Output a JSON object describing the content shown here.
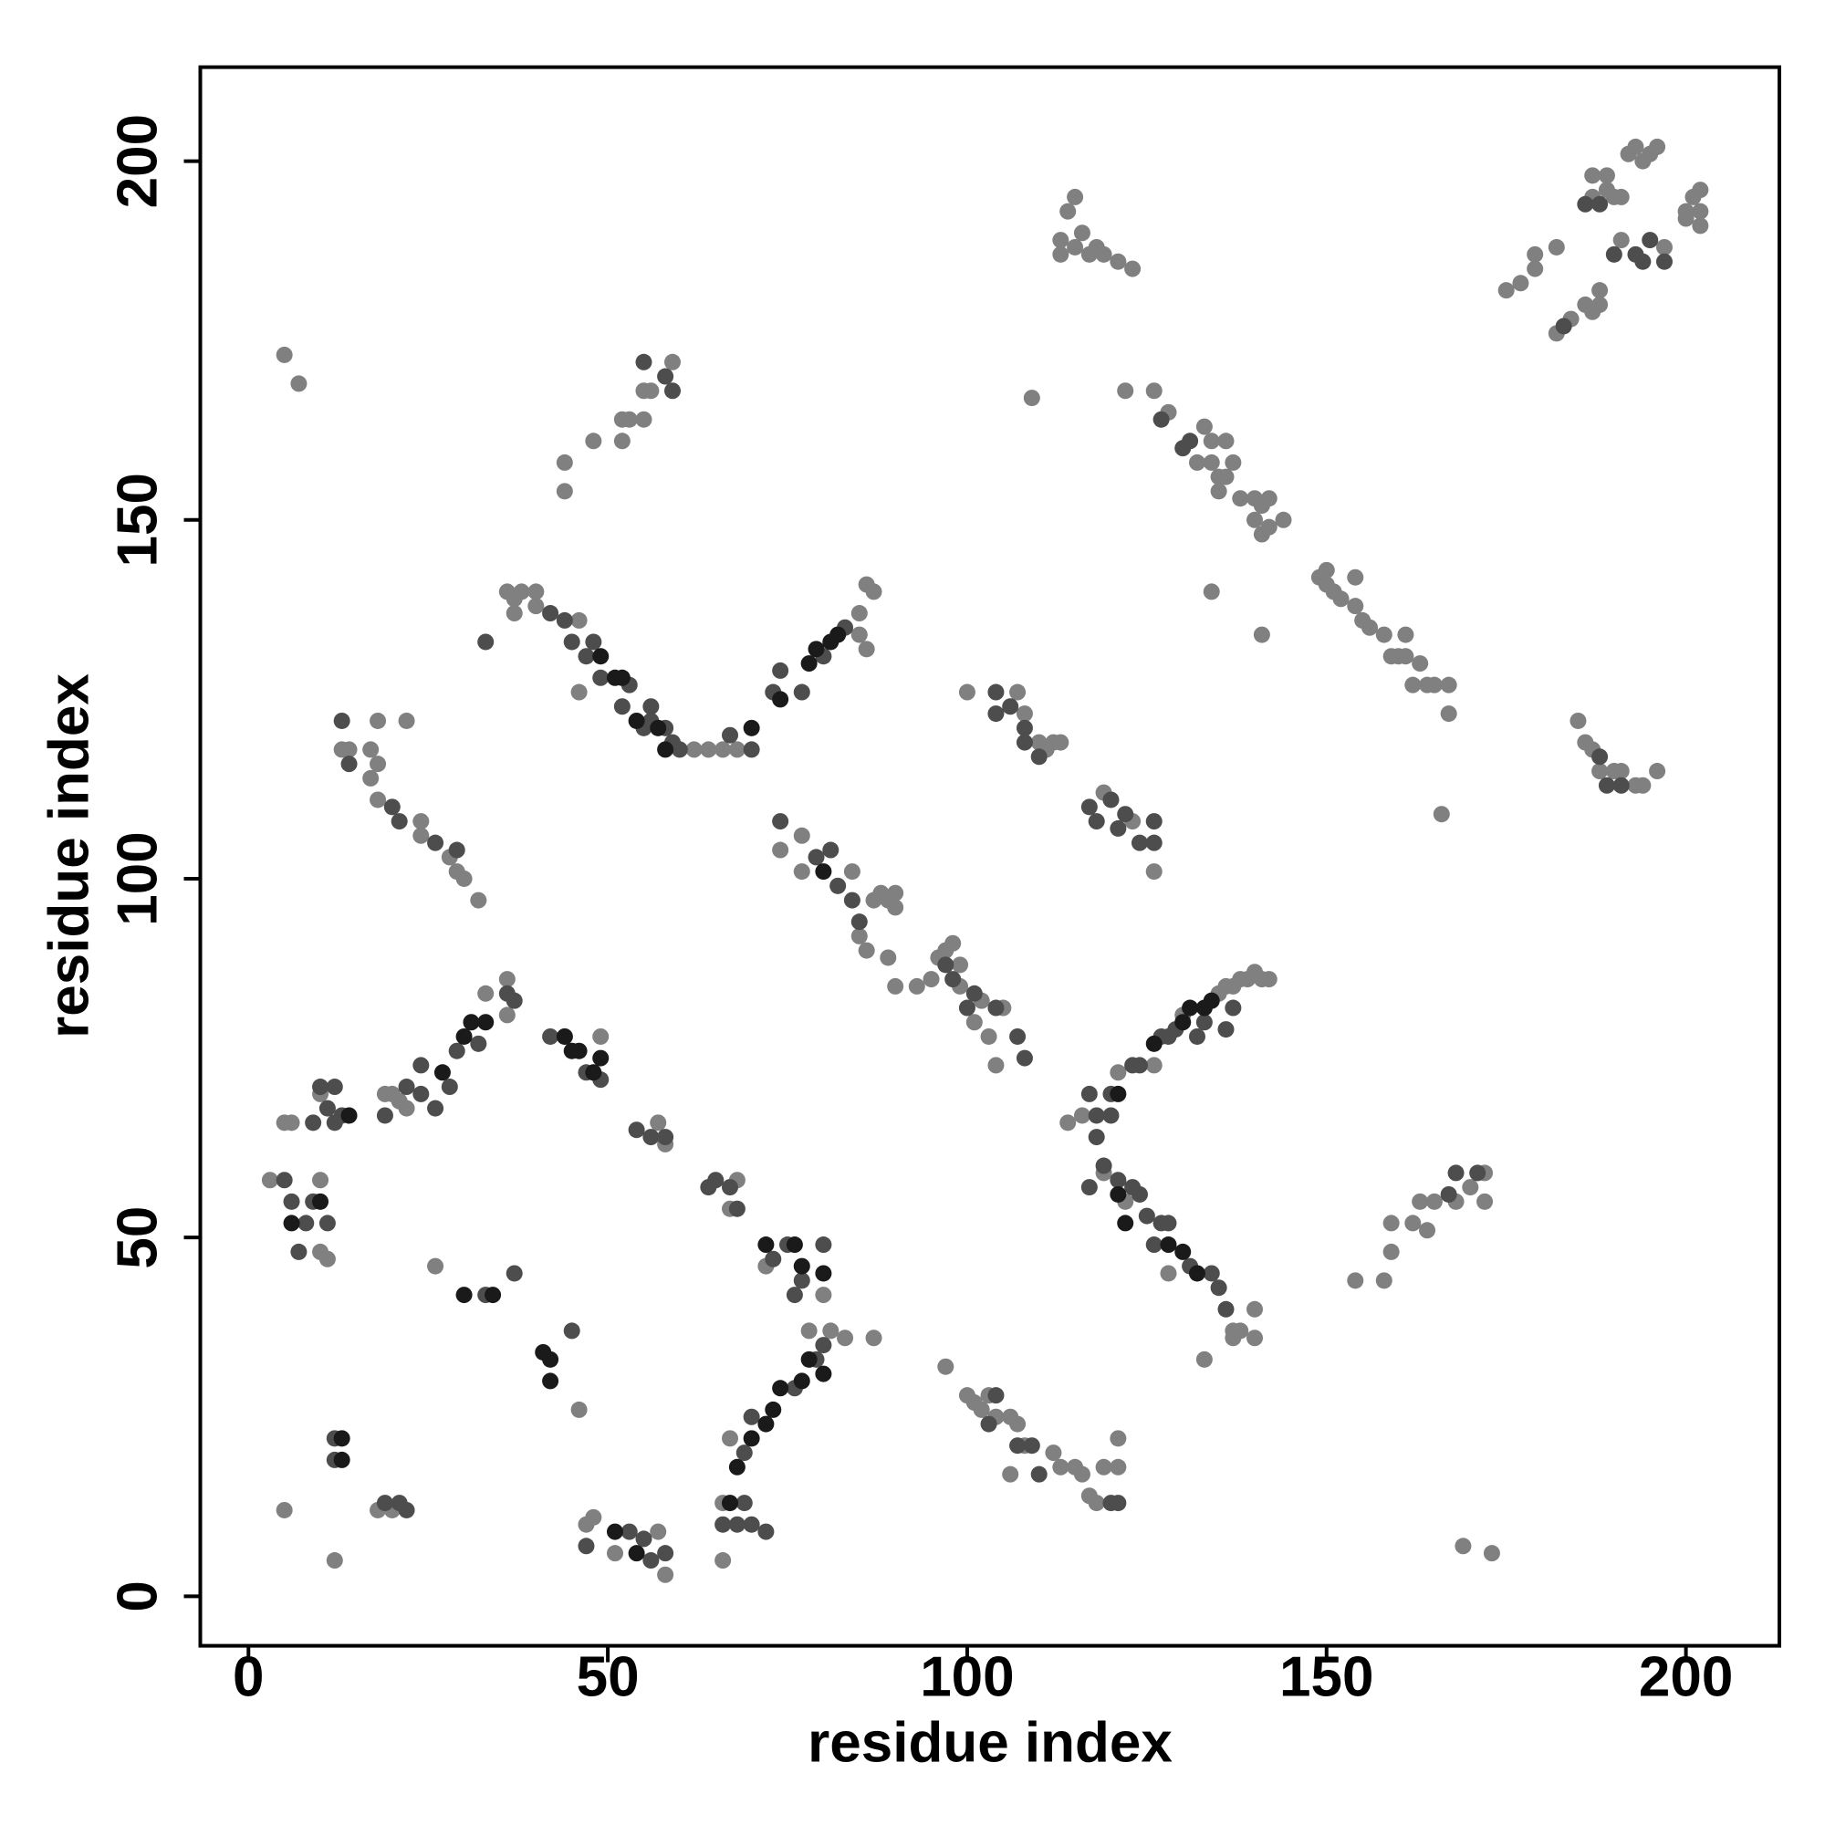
{
  "chart_data": {
    "type": "scatter",
    "x_label": "residue index",
    "y_label": "residue index",
    "xlim": [
      -6.7,
      213
    ],
    "ylim": [
      -6.9,
      213.1
    ],
    "xticks": [
      0,
      50,
      100,
      150,
      200
    ],
    "yticks": [
      0,
      50,
      100,
      150,
      200
    ],
    "grid": false,
    "series": [
      {
        "color": "#808080",
        "x": [
          5,
          12,
          18,
          20,
          26,
          46,
          48,
          47,
          51,
          57,
          58,
          66,
          66,
          67,
          78,
          81,
          83,
          87,
          80,
          72,
          68,
          67,
          57,
          58,
          44,
          49,
          36,
          36,
          33,
          21,
          22,
          20,
          19,
          10,
          6,
          5,
          3,
          10,
          10,
          11,
          5,
          7,
          13,
          14,
          17,
          18,
          17,
          18,
          24,
          24,
          28,
          29,
          30,
          32,
          18,
          22,
          36,
          37,
          37,
          38,
          40,
          40,
          46,
          46,
          62,
          64,
          66,
          68,
          85,
          85,
          86,
          87,
          86,
          44,
          44,
          48,
          52,
          53,
          52,
          55,
          55,
          59,
          56,
          74,
          77,
          77,
          84,
          85,
          86,
          87,
          88,
          89,
          90,
          90,
          89,
          90,
          93,
          95,
          96,
          97,
          98,
          99,
          99,
          101,
          102,
          103,
          105,
          104,
          100,
          107,
          108,
          110,
          111,
          112,
          113,
          119,
          123,
          126,
          109,
          126,
          128,
          132,
          133,
          134,
          134,
          135,
          136,
          135,
          136,
          137,
          138,
          140,
          140,
          141,
          141,
          142,
          142,
          144,
          141,
          134,
          149,
          150,
          150,
          151,
          152,
          154,
          154,
          155,
          156,
          158,
          159,
          160,
          161,
          161,
          162,
          163,
          164,
          165,
          167,
          167,
          122,
          166,
          113,
          114,
          115,
          116,
          117,
          118,
          119,
          121,
          123,
          115,
          113,
          175,
          177,
          179,
          179,
          182,
          182,
          184,
          186,
          187,
          188,
          188,
          187,
          187,
          189,
          189,
          190,
          191,
          191,
          192,
          193,
          194,
          195,
          196,
          197,
          200,
          200,
          201,
          202,
          202,
          202,
          185,
          186,
          187,
          188,
          190,
          191,
          193,
          194,
          196,
          114,
          116,
          122,
          128,
          137,
          137,
          138,
          140,
          140,
          133,
          121,
          126,
          130,
          135,
          136,
          137,
          138,
          139,
          140,
          141,
          142,
          119,
          97,
          100,
          101,
          102,
          103,
          104,
          106,
          107,
          108,
          112,
          115,
          116,
          117,
          118,
          119,
          121,
          121,
          106,
          113,
          154,
          158,
          159,
          159,
          162,
          163,
          164,
          165,
          168,
          170,
          172,
          172,
          169,
          173
        ],
        "values": [
          12,
          5,
          12,
          12,
          46,
          26,
          11,
          10,
          6,
          9,
          3,
          5,
          13,
          22,
          37,
          37,
          36,
          36,
          42,
          46,
          58,
          54,
          66,
          63,
          78,
          78,
          81,
          86,
          84,
          69,
          68,
          70,
          70,
          70,
          66,
          66,
          58,
          58,
          48,
          47,
          173,
          169,
          118,
          118,
          118,
          116,
          114,
          111,
          106,
          108,
          103,
          101,
          100,
          97,
          122,
          122,
          140,
          139,
          137,
          140,
          138,
          140,
          136,
          126,
          118,
          118,
          118,
          118,
          134,
          137,
          141,
          140,
          132,
          154,
          158,
          161,
          164,
          164,
          161,
          164,
          168,
          172,
          168,
          104,
          106,
          101,
          101,
          92,
          90,
          97,
          98,
          97,
          98,
          96,
          89,
          85,
          85,
          86,
          89,
          90,
          91,
          88,
          85,
          80,
          83,
          78,
          82,
          74,
          126,
          126,
          123,
          119,
          118,
          119,
          119,
          112,
          108,
          101,
          167,
          168,
          165,
          158,
          163,
          161,
          158,
          156,
          156,
          154,
          161,
          158,
          153,
          153,
          150,
          148,
          152,
          149,
          153,
          150,
          134,
          140,
          142,
          143,
          141,
          140,
          139,
          142,
          138,
          136,
          135,
          134,
          131,
          131,
          134,
          131,
          127,
          130,
          127,
          127,
          127,
          123,
          168,
          109,
          187,
          193,
          188,
          190,
          187,
          188,
          187,
          186,
          185,
          195,
          189,
          182,
          183,
          185,
          187,
          188,
          176,
          178,
          180,
          179,
          180,
          182,
          195,
          198,
          196,
          198,
          195,
          195,
          189,
          201,
          202,
          200,
          201,
          202,
          188,
          193,
          192,
          195,
          196,
          193,
          191,
          122,
          119,
          118,
          115,
          115,
          115,
          113,
          113,
          115,
          66,
          67,
          55,
          45,
          37,
          36,
          37,
          40,
          36,
          33,
          73,
          74,
          81,
          84,
          85,
          85,
          86,
          86,
          87,
          86,
          86,
          59,
          32,
          28,
          27,
          26,
          28,
          25,
          25,
          24,
          21,
          20,
          18,
          17,
          14,
          13,
          18,
          18,
          22,
          17,
          18,
          44,
          44,
          48,
          52,
          52,
          55,
          51,
          55,
          55,
          57,
          59,
          55,
          7,
          6
        ]
      },
      {
        "color": "#4d4d4d",
        "x": [
          12,
          12,
          19,
          21,
          22,
          33,
          37,
          45,
          47,
          53,
          55,
          56,
          58,
          66,
          68,
          69,
          70,
          72,
          69,
          70,
          76,
          79,
          80,
          73,
          75,
          77,
          76,
          80,
          64,
          65,
          67,
          68,
          54,
          56,
          58,
          47,
          49,
          42,
          36,
          37,
          28,
          29,
          32,
          22,
          24,
          26,
          24,
          19,
          11,
          12,
          13,
          12,
          10,
          9,
          5,
          6,
          8,
          9,
          7,
          11,
          13,
          14,
          20,
          21,
          26,
          29,
          33,
          42,
          44,
          45,
          47,
          48,
          49,
          52,
          53,
          55,
          56,
          56,
          58,
          59,
          60,
          67,
          70,
          73,
          74,
          77,
          80,
          83,
          55,
          58,
          59,
          74,
          79,
          81,
          82,
          84,
          85,
          97,
          98,
          100,
          101,
          104,
          107,
          108,
          104,
          104,
          106,
          108,
          108,
          110,
          117,
          118,
          120,
          121,
          122,
          124,
          126,
          126,
          130,
          131,
          127,
          118,
          118,
          120,
          119,
          121,
          123,
          124,
          125,
          126,
          127,
          128,
          131,
          134,
          135,
          136,
          117,
          120,
          123,
          124,
          127,
          128,
          129,
          132,
          133,
          136,
          137,
          103,
          104,
          107,
          109,
          110,
          120,
          121,
          186,
          188,
          190,
          193,
          194,
          195,
          197,
          189,
          191,
          167,
          168,
          171,
          188,
          183,
          117
        ],
        "values": [
          19,
          22,
          13,
          13,
          12,
          42,
          45,
          37,
          7,
          9,
          8,
          5,
          6,
          10,
          10,
          13,
          10,
          9,
          20,
          25,
          29,
          33,
          35,
          47,
          49,
          44,
          42,
          49,
          57,
          58,
          57,
          54,
          65,
          64,
          64,
          73,
          72,
          78,
          84,
          83,
          71,
          76,
          77,
          71,
          70,
          68,
          74,
          67,
          68,
          66,
          67,
          71,
          71,
          66,
          58,
          55,
          52,
          55,
          48,
          52,
          122,
          116,
          110,
          108,
          105,
          104,
          133,
          137,
          136,
          133,
          131,
          133,
          128,
          124,
          127,
          121,
          124,
          122,
          121,
          119,
          118,
          120,
          118,
          126,
          129,
          126,
          131,
          135,
          172,
          170,
          168,
          108,
          103,
          104,
          99,
          97,
          94,
          88,
          86,
          82,
          84,
          82,
          78,
          75,
          126,
          123,
          124,
          121,
          119,
          117,
          110,
          108,
          111,
          107,
          109,
          105,
          105,
          108,
          160,
          161,
          164,
          64,
          67,
          67,
          60,
          58,
          57,
          56,
          53,
          49,
          52,
          52,
          46,
          45,
          43,
          40,
          70,
          70,
          74,
          74,
          78,
          78,
          79,
          78,
          80,
          79,
          82,
          24,
          28,
          21,
          21,
          17,
          13,
          13,
          194,
          194,
          187,
          187,
          186,
          189,
          186,
          113,
          113,
          56,
          59,
          59,
          117,
          177,
          57
        ]
      },
      {
        "color": "#1a1a1a",
        "x": [
          13,
          13,
          30,
          34,
          41,
          42,
          42,
          45,
          46,
          48,
          49,
          44,
          33,
          31,
          30,
          27,
          67,
          68,
          70,
          72,
          73,
          74,
          77,
          78,
          80,
          72,
          76,
          77,
          80,
          49,
          51,
          52,
          54,
          57,
          58,
          70,
          74,
          78,
          79,
          81,
          82,
          80,
          51,
          54,
          121,
          122,
          121,
          126,
          128,
          130,
          132,
          130,
          131,
          133,
          134,
          10,
          6,
          14
        ],
        "values": [
          19,
          22,
          42,
          42,
          34,
          33,
          30,
          76,
          76,
          73,
          75,
          78,
          80,
          80,
          78,
          73,
          13,
          18,
          22,
          24,
          26,
          29,
          30,
          33,
          31,
          49,
          49,
          46,
          45,
          131,
          128,
          128,
          122,
          121,
          118,
          121,
          125,
          130,
          132,
          133,
          134,
          101,
          9,
          6,
          56,
          52,
          70,
          77,
          49,
          48,
          45,
          80,
          82,
          82,
          83,
          55,
          52,
          67
        ]
      }
    ]
  }
}
